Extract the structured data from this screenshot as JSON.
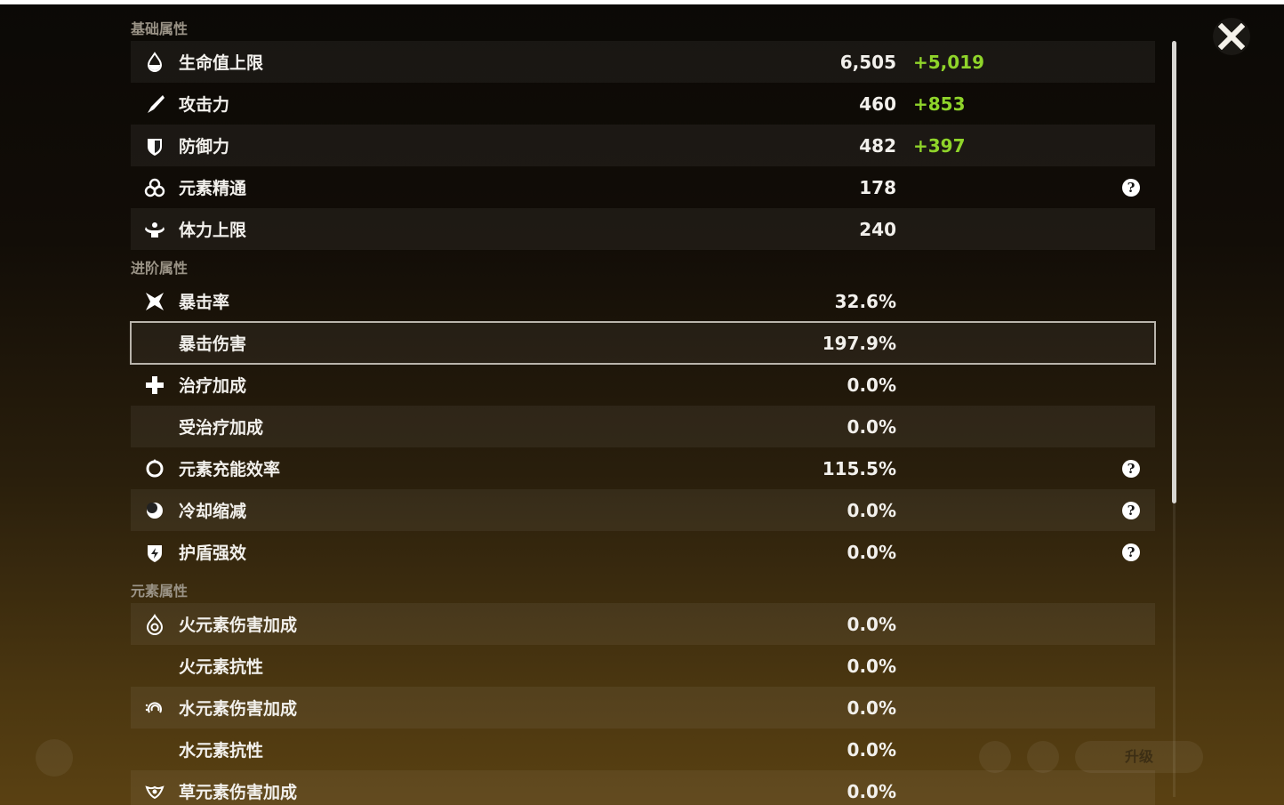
{
  "window": {
    "close_icon": "close-icon"
  },
  "sections": [
    {
      "title": "基础属性",
      "rows": [
        {
          "icon": "hp-drop-icon",
          "label": "生命值上限",
          "value": "6,505",
          "bonus": "+5,019",
          "alt": true
        },
        {
          "icon": "sword-icon",
          "label": "攻击力",
          "value": "460",
          "bonus": "+853",
          "alt": false
        },
        {
          "icon": "shield-icon",
          "label": "防御力",
          "value": "482",
          "bonus": "+397",
          "alt": true
        },
        {
          "icon": "elemental-mastery-icon",
          "label": "元素精通",
          "value": "178",
          "help": true,
          "alt": false
        },
        {
          "icon": "stamina-icon",
          "label": "体力上限",
          "value": "240",
          "alt": true
        }
      ]
    },
    {
      "title": "进阶属性",
      "rows": [
        {
          "icon": "crit-rate-icon",
          "label": "暴击率",
          "value": "32.6%",
          "alt": false
        },
        {
          "icon": "",
          "label": "暴击伤害",
          "value": "197.9%",
          "alt": true,
          "selected": true
        },
        {
          "icon": "healing-icon",
          "label": "治疗加成",
          "value": "0.0%",
          "alt": false
        },
        {
          "icon": "",
          "label": "受治疗加成",
          "value": "0.0%",
          "alt": true
        },
        {
          "icon": "energy-recharge-icon",
          "label": "元素充能效率",
          "value": "115.5%",
          "help": true,
          "alt": false
        },
        {
          "icon": "cooldown-icon",
          "label": "冷却缩减",
          "value": "0.0%",
          "help": true,
          "alt": true
        },
        {
          "icon": "shield-strength-icon",
          "label": "护盾强效",
          "value": "0.0%",
          "help": true,
          "alt": false
        }
      ]
    },
    {
      "title": "元素属性",
      "rows": [
        {
          "icon": "pyro-icon",
          "label": "火元素伤害加成",
          "value": "0.0%",
          "alt": true
        },
        {
          "icon": "",
          "label": "火元素抗性",
          "value": "0.0%",
          "alt": false
        },
        {
          "icon": "hydro-icon",
          "label": "水元素伤害加成",
          "value": "0.0%",
          "alt": true
        },
        {
          "icon": "",
          "label": "水元素抗性",
          "value": "0.0%",
          "alt": false
        },
        {
          "icon": "dendro-icon",
          "label": "草元素伤害加成",
          "value": "0.0%",
          "alt": true
        }
      ]
    }
  ],
  "help_glyph": "?",
  "footer": {
    "upgrade_label": "升级"
  },
  "colors": {
    "bonus": "#8fd42a",
    "text": "#f2f0ec",
    "section_header": "#9a9386"
  }
}
